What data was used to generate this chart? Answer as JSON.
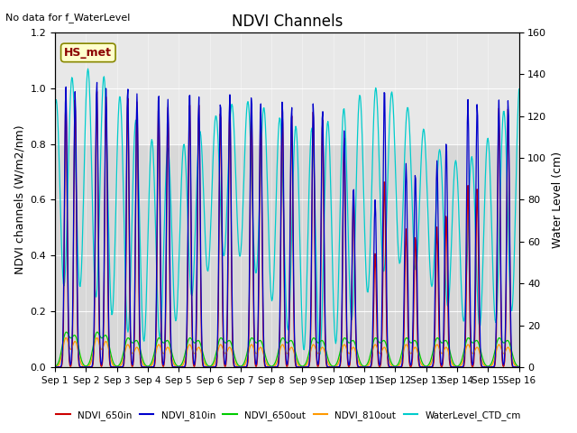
{
  "title": "NDVI Channels",
  "ylabel_left": "NDVI channels (W/m2/nm)",
  "ylabel_right": "Water Level (cm)",
  "top_left_text": "No data for f_WaterLevel",
  "annotation_box": "HS_met",
  "ylim_left": [
    0,
    1.2
  ],
  "ylim_right": [
    0,
    160
  ],
  "yticks_left": [
    0.0,
    0.2,
    0.4,
    0.6,
    0.8,
    1.0,
    1.2
  ],
  "yticks_right": [
    0,
    20,
    40,
    60,
    80,
    100,
    120,
    140,
    160
  ],
  "xtick_labels": [
    "Sep 1",
    "Sep 2",
    "Sep 3",
    "Sep 4",
    "Sep 5",
    "Sep 6",
    "Sep 7",
    "Sep 8",
    "Sep 9",
    "Sep 10",
    "Sep 11",
    "Sep 12",
    "Sep 13",
    "Sep 14",
    "Sep 15",
    "Sep 16"
  ],
  "colors": {
    "NDVI_650in": "#cc0000",
    "NDVI_810in": "#0000cc",
    "NDVI_650out": "#00cc00",
    "NDVI_810out": "#ff9900",
    "WaterLevel_CTD_cm": "#00cccc"
  },
  "plot_bg_color": "#d8d8d8",
  "plot_upper_bg_color": "#e8e8e8",
  "ndvi_upper_thresh": 0.9375,
  "wl_scale_max": 160
}
